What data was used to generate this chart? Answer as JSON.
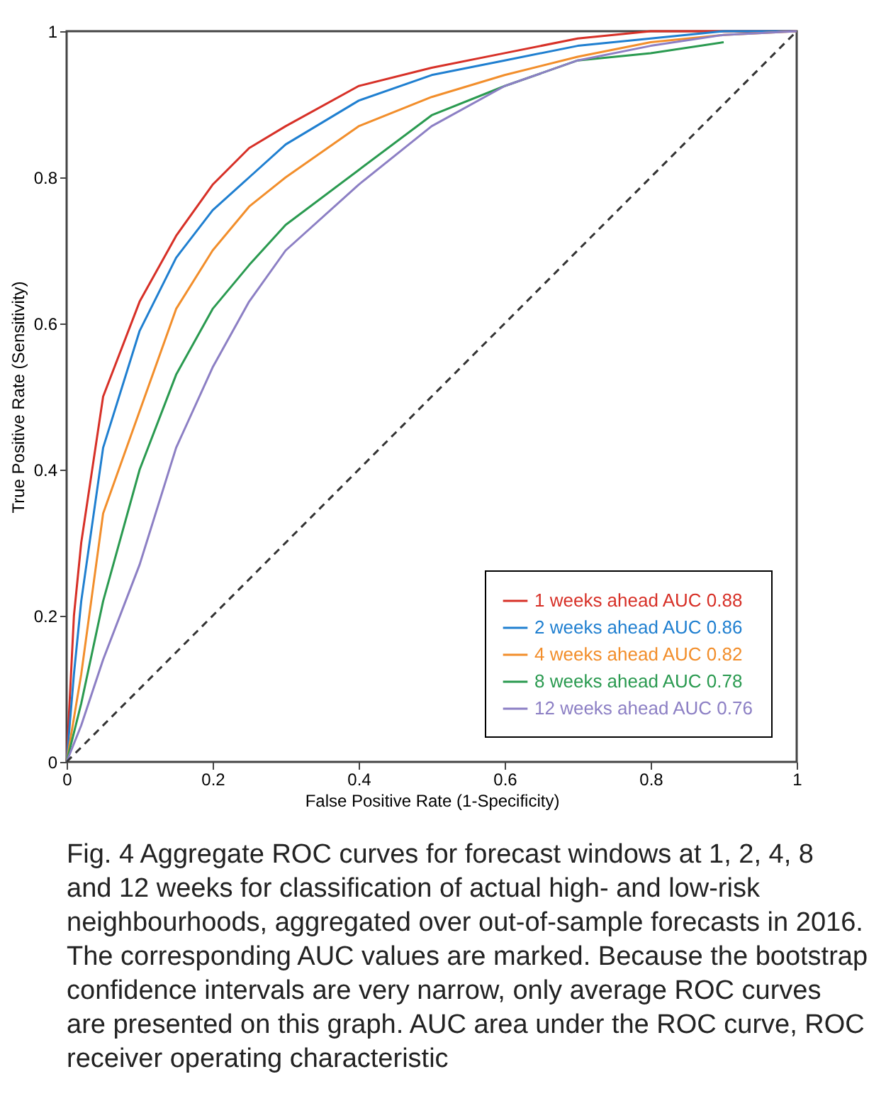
{
  "chart_data": {
    "type": "line",
    "xlabel": "False Positive Rate (1-Specificity)",
    "ylabel": "True Positive Rate (Sensitivity)",
    "x": [
      0,
      0.01,
      0.02,
      0.05,
      0.1,
      0.15,
      0.2,
      0.25,
      0.3,
      0.4,
      0.5,
      0.6,
      0.7,
      0.8,
      0.9,
      1
    ],
    "series": [
      {
        "name": "1 weeks ahead AUC 0.88",
        "color": "#d73027",
        "values": [
          0,
          0.2,
          0.3,
          0.5,
          0.63,
          0.72,
          0.79,
          0.84,
          0.87,
          0.925,
          0.95,
          0.97,
          0.99,
          1.0,
          1.0,
          1
        ]
      },
      {
        "name": "2 weeks ahead AUC 0.86",
        "color": "#1f7fd0",
        "values": [
          0,
          0.12,
          0.22,
          0.43,
          0.59,
          0.69,
          0.755,
          0.8,
          0.845,
          0.905,
          0.94,
          0.96,
          0.98,
          0.99,
          1.0,
          1
        ]
      },
      {
        "name": "4 weeks ahead AUC 0.82",
        "color": "#f28e2b",
        "values": [
          0,
          0.06,
          0.12,
          0.34,
          0.48,
          0.62,
          0.7,
          0.76,
          0.8,
          0.87,
          0.91,
          0.94,
          0.965,
          0.985,
          0.995,
          1
        ]
      },
      {
        "name": "8 weeks ahead AUC 0.78",
        "color": "#2a9a50",
        "values": [
          0,
          0.04,
          0.08,
          0.22,
          0.4,
          0.53,
          0.62,
          0.68,
          0.735,
          0.81,
          0.885,
          0.925,
          0.96,
          0.97,
          0.985,
          null
        ]
      },
      {
        "name": "12 weeks ahead AUC 0.76",
        "color": "#8c7fc4",
        "values": [
          0,
          0.025,
          0.05,
          0.14,
          0.27,
          0.43,
          0.54,
          0.63,
          0.7,
          0.79,
          0.87,
          0.925,
          0.96,
          0.98,
          0.995,
          1
        ]
      },
      {
        "type": "line",
        "x": [
          0,
          1
        ],
        "values": [
          0,
          1
        ],
        "color": "#333333",
        "line_style": "dashed"
      }
    ],
    "xlim": [
      0,
      1
    ],
    "ylim": [
      0,
      1
    ],
    "xticks": [
      0,
      0.2,
      0.4,
      0.6,
      0.8,
      1
    ],
    "yticks": [
      0,
      0.2,
      0.4,
      0.6,
      0.8,
      1
    ],
    "grid": false,
    "legend": "bottom right",
    "marker": "none",
    "annotations": [
      "Fig. 4 Aggregate ROC curves for forecast windows at 1, 2, 4, 8 and 12 weeks for classification of actual high- and low-risk neighbourhoods, aggregated over out-of-sample forecasts in 2016. The corresponding AUC values are marked. Because the bootstrap confidence intervals are very narrow, only average ROC curves are presented on this graph. AUC area under the ROC curve, ROC receiver operating characteristic"
    ]
  }
}
